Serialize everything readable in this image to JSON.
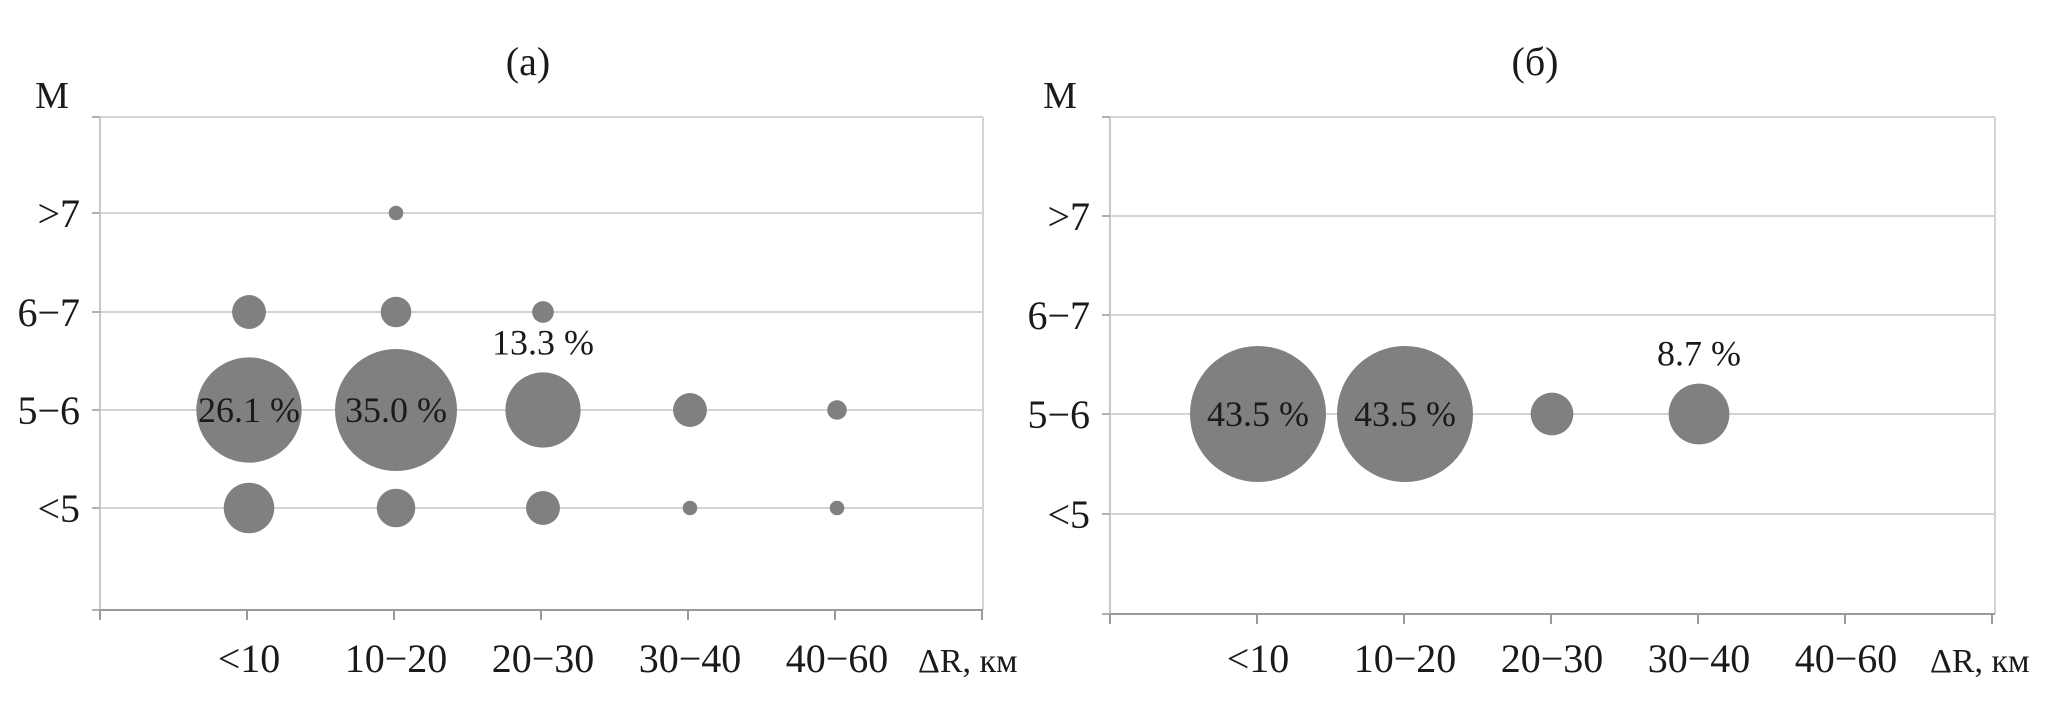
{
  "chart_data": [
    {
      "type": "scatter",
      "subtype": "bubble",
      "title": "(а)",
      "ylabel": "М",
      "xlabel": "ΔR, км",
      "categories": [
        "<10",
        "10−20",
        "20−30",
        "30−40",
        "40−60"
      ],
      "y_categories": [
        "<5",
        "5−6",
        "6−7",
        ">7"
      ],
      "grid": true,
      "bubble_color": "#808083",
      "points": [
        {
          "x": "<10",
          "y": "5−6",
          "value": 26.1,
          "label": "26.1 %"
        },
        {
          "x": "10−20",
          "y": "5−6",
          "value": 35.0,
          "label": "35.0 %"
        },
        {
          "x": "20−30",
          "y": "5−6",
          "value": 13.3,
          "label": "13.3 %"
        },
        {
          "x": "30−40",
          "y": "5−6",
          "value": 2.7
        },
        {
          "x": "40−60",
          "y": "5−6",
          "value": 0.9
        },
        {
          "x": "<10",
          "y": "<5",
          "value": 6.0
        },
        {
          "x": "10−20",
          "y": "<5",
          "value": 3.5
        },
        {
          "x": "20−30",
          "y": "<5",
          "value": 2.7
        },
        {
          "x": "30−40",
          "y": "<5",
          "value": 0.5
        },
        {
          "x": "40−60",
          "y": "<5",
          "value": 0.5
        },
        {
          "x": "<10",
          "y": "6−7",
          "value": 2.7
        },
        {
          "x": "10−20",
          "y": "6−7",
          "value": 2.2
        },
        {
          "x": "20−30",
          "y": "6−7",
          "value": 1.1
        },
        {
          "x": "10−20",
          "y": ">7",
          "value": 0.5
        }
      ]
    },
    {
      "type": "scatter",
      "subtype": "bubble",
      "title": "(б)",
      "ylabel": "М",
      "xlabel": "ΔR, км",
      "categories": [
        "<10",
        "10−20",
        "20−30",
        "30−40",
        "40−60"
      ],
      "y_categories": [
        "<5",
        "5−6",
        "6−7",
        ">7"
      ],
      "grid": true,
      "bubble_color": "#808083",
      "points": [
        {
          "x": "<10",
          "y": "5−6",
          "value": 43.5,
          "label": "43.5 %"
        },
        {
          "x": "10−20",
          "y": "5−6",
          "value": 43.5,
          "label": "43.5 %"
        },
        {
          "x": "20−30",
          "y": "5−6",
          "value": 4.3
        },
        {
          "x": "30−40",
          "y": "5−6",
          "value": 8.7,
          "label": "8.7 %"
        }
      ]
    }
  ]
}
